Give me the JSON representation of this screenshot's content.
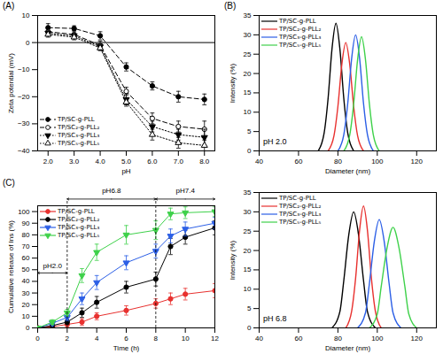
{
  "chart_data": [
    {
      "type": "line",
      "title": "(A)",
      "x_label": "pH",
      "y_label": "Zeta potential (mV)",
      "x": [
        2,
        3,
        4,
        5,
        6,
        7,
        8
      ],
      "xlim": [
        1.6,
        8.4
      ],
      "xticks": [
        2,
        3,
        4,
        5,
        6,
        7,
        8
      ],
      "ylim": [
        -40,
        10
      ],
      "yticks": [
        -40,
        -30,
        -20,
        -10,
        0,
        10
      ],
      "grid": false,
      "legend": "lower left",
      "series": [
        {
          "name": "TP/SC-g-PLL",
          "color": "#000000",
          "marker": "circle",
          "line_style": "dashed",
          "values": [
            5.5,
            5.2,
            2.5,
            -9,
            -16,
            -20,
            -21
          ],
          "errors": [
            1.5,
            1,
            1.5,
            1.5,
            1.5,
            2,
            2
          ]
        },
        {
          "name": "TP/SC₂-g-PLL₂",
          "color": "#000000",
          "marker": "circle-open",
          "line_style": "dashed",
          "values": [
            4,
            3,
            -1,
            -18,
            -28,
            -31,
            -32
          ],
          "errors": [
            1.5,
            1.5,
            1.5,
            1.5,
            2,
            2,
            3
          ]
        },
        {
          "name": "TP/SC₃-g-PLL₃",
          "color": "#000000",
          "marker": "triangle-down",
          "line_style": "dotted",
          "values": [
            3.5,
            2.5,
            -1.5,
            -21,
            -31,
            -34,
            -35
          ],
          "errors": [
            1,
            1,
            1,
            2,
            2,
            2,
            3
          ]
        },
        {
          "name": "TP/SC₅-g-PLL₅",
          "color": "#000000",
          "marker": "triangle-open",
          "line_style": "dotted",
          "values": [
            3,
            2,
            -2,
            -22,
            -34,
            -37,
            -38
          ],
          "errors": [
            1,
            1,
            1,
            1.5,
            2,
            2,
            2
          ]
        }
      ]
    },
    {
      "type": "line",
      "title": "(B)",
      "x_label": "Diameter (nm)",
      "y_label": "Intensity (%)",
      "xlim": [
        40,
        130
      ],
      "xticks": [
        40,
        60,
        80,
        100,
        120
      ],
      "ylim": [
        0,
        35
      ],
      "yticks": [
        0,
        5,
        10,
        15,
        20,
        25,
        30,
        35
      ],
      "grid": false,
      "legend": "upper left",
      "annotations": [
        "pH 2.0"
      ],
      "series": [
        {
          "name": "TP/SC-g-PLL",
          "color": "#000000",
          "line_style": "solid",
          "x": [
            70,
            73,
            75,
            77,
            79,
            81,
            83,
            85,
            88
          ],
          "values": [
            0,
            4.6,
            13.5,
            26.4,
            33,
            26.4,
            13.5,
            4.6,
            0
          ]
        },
        {
          "name": "TP/SC₂-g-PLL₂",
          "color": "#e8312f",
          "line_style": "solid",
          "x": [
            75,
            78,
            80,
            82,
            84,
            86,
            88,
            90,
            93
          ],
          "values": [
            0,
            3.9,
            11.5,
            22.4,
            28,
            22.4,
            11.5,
            3.9,
            0
          ]
        },
        {
          "name": "TP/SC₃-g-PLL₃",
          "color": "#2c5fe6",
          "line_style": "solid",
          "x": [
            80,
            83,
            85,
            87,
            89,
            91,
            93,
            95,
            98
          ],
          "values": [
            0,
            4.2,
            12.3,
            24,
            30,
            24,
            12.3,
            4.2,
            0
          ]
        },
        {
          "name": "TP/SC₅-g-PLL₅",
          "color": "#3ed14a",
          "line_style": "solid",
          "x": [
            83,
            86,
            88,
            90,
            92,
            94,
            96,
            98,
            101
          ],
          "values": [
            0,
            4.1,
            12.1,
            23.6,
            29.5,
            23.6,
            12.1,
            4.1,
            0
          ]
        }
      ]
    },
    {
      "type": "line",
      "x_label": "Diameter (nm)",
      "y_label": "Intensity (%)",
      "xlim": [
        40,
        130
      ],
      "xticks": [
        40,
        60,
        80,
        100,
        120
      ],
      "ylim": [
        0,
        35
      ],
      "yticks": [
        0,
        5,
        10,
        15,
        20,
        25,
        30,
        35
      ],
      "grid": false,
      "legend": "upper left",
      "annotations": [
        "pH 6.8"
      ],
      "series": [
        {
          "name": "TP/SC-g-PLL",
          "color": "#000000",
          "line_style": "solid",
          "x": [
            77,
            81,
            83,
            85.5,
            88,
            90.5,
            93,
            95,
            99
          ],
          "values": [
            0,
            4.2,
            12.3,
            24,
            30,
            24,
            12.3,
            4.2,
            0
          ]
        },
        {
          "name": "TP/SC₂-g-PLL₂",
          "color": "#e8312f",
          "line_style": "solid",
          "x": [
            84,
            87,
            89,
            91,
            93,
            95,
            97,
            99,
            102
          ],
          "values": [
            0,
            4.4,
            12.9,
            25.2,
            31.5,
            25.2,
            12.9,
            4.4,
            0
          ]
        },
        {
          "name": "TP/SC₃-g-PLL₃",
          "color": "#2c5fe6",
          "line_style": "solid",
          "x": [
            90,
            94,
            96,
            98.5,
            101,
            103.5,
            106,
            108,
            112
          ],
          "values": [
            0,
            3.9,
            11.5,
            22.4,
            28,
            22.4,
            11.5,
            3.9,
            0
          ]
        },
        {
          "name": "TP/SC₅-g-PLL₅",
          "color": "#3ed14a",
          "line_style": "solid",
          "x": [
            96,
            100,
            102,
            105,
            108,
            111,
            114,
            116,
            120
          ],
          "values": [
            0,
            3.6,
            10.7,
            20.8,
            26,
            20.8,
            10.7,
            3.6,
            0
          ]
        }
      ]
    },
    {
      "type": "line",
      "title": "(C)",
      "x_label": "Time (h)",
      "y_label": "Cumulative release of Ins (%)",
      "x": [
        0,
        1,
        2,
        3,
        4,
        6,
        8,
        9,
        10,
        12
      ],
      "xlim": [
        0,
        12
      ],
      "xticks": [
        0,
        2,
        4,
        6,
        8,
        10,
        12
      ],
      "ylim": [
        0,
        105
      ],
      "yticks": [
        0,
        10,
        20,
        30,
        40,
        50,
        60,
        70,
        80,
        90,
        100
      ],
      "grid": false,
      "legend": "upper left",
      "annotations": [
        {
          "text": "pH2.0",
          "from": 0,
          "to": 2
        },
        {
          "text": "pH6.8",
          "from": 2,
          "to": 8
        },
        {
          "text": "pH7.4",
          "from": 8,
          "to": 12
        }
      ],
      "series": [
        {
          "name": "TP/SC-g-PLL",
          "color": "#e8312f",
          "marker": "circle",
          "line_style": "solid",
          "values": [
            0,
            1,
            3,
            5,
            10,
            15,
            21,
            25,
            29,
            32
          ],
          "errors": [
            0,
            1,
            2,
            3,
            3,
            4,
            4,
            5,
            5,
            6
          ]
        },
        {
          "name": "TP/SC₂-g-PLL₂",
          "color": "#000000",
          "marker": "circle",
          "line_style": "solid",
          "values": [
            0,
            2,
            5,
            13,
            22,
            35,
            42,
            70,
            78,
            86
          ],
          "errors": [
            0,
            2,
            2,
            4,
            5,
            5,
            6,
            7,
            6,
            6
          ]
        },
        {
          "name": "TP/SC₃-g-PLL₃",
          "color": "#2c5fe6",
          "marker": "triangle-down",
          "line_style": "solid",
          "values": [
            0,
            4,
            9,
            25,
            39,
            56,
            66,
            79,
            85,
            90
          ],
          "errors": [
            0,
            2,
            3,
            5,
            6,
            6,
            6,
            6,
            6,
            5
          ]
        },
        {
          "name": "TP/SC₅-g-PLL₅",
          "color": "#3ed14a",
          "marker": "triangle-down",
          "line_style": "solid",
          "values": [
            0,
            5,
            13,
            45,
            65,
            80,
            84,
            98,
            99,
            100
          ],
          "errors": [
            0,
            2,
            3,
            6,
            7,
            8,
            8,
            5,
            5,
            4
          ]
        }
      ]
    }
  ]
}
